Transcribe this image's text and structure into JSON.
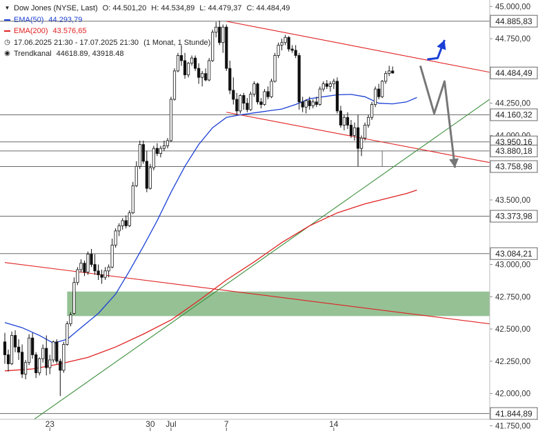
{
  "legend": {
    "title": "Dow Jones (NYSE, Last)",
    "ohlc": {
      "o": "O: 44.501,20",
      "h": "H: 44.534,89",
      "l": "L: 44.479,37",
      "c": "C: 44.484,49"
    },
    "ema50": {
      "label": "EMA(50)",
      "value": "44.293,79",
      "color": "#1a3fd6"
    },
    "ema200": {
      "label": "EMA(200)",
      "value": "43.576,65",
      "color": "#e02020"
    },
    "period": {
      "range": "17.06.2025 21:30 - 17.07.2025 21:30",
      "interval": "(1 Monat, 1 Stunde)"
    },
    "channel": {
      "label": "Trendkanal",
      "values": "44618.89, 43918.48"
    }
  },
  "chart_data": {
    "type": "candlestick",
    "ylim": [
      41800,
      45050
    ],
    "y_ticks": [
      {
        "v": 45000,
        "label": "45.000,00"
      },
      {
        "v": 44750,
        "label": "44.750,00"
      },
      {
        "v": 44250,
        "label": "44.250,00"
      },
      {
        "v": 44000,
        "label": "44.000,00"
      },
      {
        "v": 43500,
        "label": "43.500,00"
      },
      {
        "v": 43000,
        "label": "43.000,00"
      },
      {
        "v": 42750,
        "label": "42.750,00"
      },
      {
        "v": 42500,
        "label": "42.500,00"
      },
      {
        "v": 42250,
        "label": "42.250,00"
      },
      {
        "v": 42000,
        "label": "42.000,00"
      },
      {
        "v": 41750,
        "label": "41.750,00"
      }
    ],
    "x_ticks": [
      {
        "i": 13,
        "label": "23"
      },
      {
        "i": 42,
        "label": "30"
      },
      {
        "i": 48,
        "label": "Jul"
      },
      {
        "i": 64,
        "label": "7"
      },
      {
        "i": 95,
        "label": "14"
      }
    ],
    "levels": [
      {
        "v": 44885.83,
        "label": "44.885,83"
      },
      {
        "v": 44160.32,
        "label": "44.160,32"
      },
      {
        "v": 43950.16,
        "label": "43.950,16"
      },
      {
        "v": 43880.18,
        "label": "43.880,18"
      },
      {
        "v": 43758.98,
        "label": "43.758,98"
      },
      {
        "v": 43373.98,
        "label": "43.373,98"
      },
      {
        "v": 43084.21,
        "label": "43.084,21"
      },
      {
        "v": 41844.89,
        "label": "41.844,89"
      }
    ],
    "last_price": {
      "v": 44484.49,
      "label": "44.484,49"
    },
    "zone": {
      "from_i": 18,
      "low": 42600,
      "high": 42790,
      "color": "#8fbe8f"
    },
    "trendlines": [
      {
        "name": "channel-upper",
        "i1": 64,
        "v1": 44885,
        "i2": 140,
        "v2": 44490,
        "color": "#e02020"
      },
      {
        "name": "channel-lower",
        "i1": 64,
        "v1": 44180,
        "i2": 140,
        "v2": 43790,
        "color": "#e02020"
      },
      {
        "name": "long-down",
        "i1": 0,
        "v1": 43015,
        "i2": 140,
        "v2": 42540,
        "color": "#e02020"
      },
      {
        "name": "uptrend",
        "i1": 0,
        "v1": 41640,
        "i2": 140,
        "v2": 44280,
        "color": "#3b8f3b"
      }
    ],
    "arrows": [
      {
        "name": "bull-scenario",
        "color": "#1a3fd6",
        "points": [
          [
            122,
            44590
          ],
          [
            125,
            44600
          ],
          [
            127,
            44740
          ]
        ]
      },
      {
        "name": "bear-scenario",
        "color": "#777777",
        "points": [
          [
            120,
            44540
          ],
          [
            124,
            44170
          ],
          [
            127,
            44420
          ],
          [
            130,
            43750
          ]
        ]
      }
    ],
    "ema50": [
      [
        0,
        42550
      ],
      [
        5,
        42510
      ],
      [
        10,
        42450
      ],
      [
        14,
        42390
      ],
      [
        18,
        42420
      ],
      [
        22,
        42510
      ],
      [
        27,
        42620
      ],
      [
        32,
        42770
      ],
      [
        36,
        42950
      ],
      [
        40,
        43140
      ],
      [
        44,
        43340
      ],
      [
        48,
        43560
      ],
      [
        52,
        43760
      ],
      [
        56,
        43930
      ],
      [
        60,
        44060
      ],
      [
        64,
        44140
      ],
      [
        68,
        44160
      ],
      [
        72,
        44175
      ],
      [
        76,
        44190
      ],
      [
        80,
        44205
      ],
      [
        84,
        44240
      ],
      [
        88,
        44285
      ],
      [
        92,
        44300
      ],
      [
        96,
        44315
      ],
      [
        100,
        44318
      ],
      [
        104,
        44300
      ],
      [
        108,
        44250
      ],
      [
        112,
        44245
      ],
      [
        116,
        44260
      ],
      [
        119,
        44294
      ]
    ],
    "ema200": [
      [
        0,
        42175
      ],
      [
        8,
        42190
      ],
      [
        16,
        42230
      ],
      [
        24,
        42280
      ],
      [
        32,
        42360
      ],
      [
        40,
        42460
      ],
      [
        48,
        42570
      ],
      [
        56,
        42720
      ],
      [
        64,
        42880
      ],
      [
        72,
        43020
      ],
      [
        80,
        43170
      ],
      [
        88,
        43300
      ],
      [
        96,
        43400
      ],
      [
        104,
        43470
      ],
      [
        110,
        43510
      ],
      [
        116,
        43550
      ],
      [
        119,
        43577
      ]
    ],
    "candles": [
      [
        42400,
        42470,
        42230,
        42300
      ],
      [
        42300,
        42340,
        42170,
        42230
      ],
      [
        42230,
        42480,
        42220,
        42450
      ],
      [
        42450,
        42490,
        42320,
        42360
      ],
      [
        42360,
        42420,
        42260,
        42320
      ],
      [
        42320,
        42380,
        42120,
        42150
      ],
      [
        42150,
        42260,
        42110,
        42240
      ],
      [
        42240,
        42460,
        42220,
        42430
      ],
      [
        42430,
        42470,
        42270,
        42300
      ],
      [
        42300,
        42320,
        42120,
        42160
      ],
      [
        42160,
        42280,
        42140,
        42270
      ],
      [
        42270,
        42380,
        42240,
        42350
      ],
      [
        42350,
        42450,
        42140,
        42200
      ],
      [
        42200,
        42300,
        42150,
        42260
      ],
      [
        42260,
        42410,
        42240,
        42400
      ],
      [
        42400,
        42420,
        42230,
        42250
      ],
      [
        42250,
        42270,
        41980,
        42180
      ],
      [
        42180,
        42400,
        42160,
        42380
      ],
      [
        42380,
        42560,
        42370,
        42540
      ],
      [
        42540,
        42630,
        42520,
        42610
      ],
      [
        42620,
        42900,
        42610,
        42860
      ],
      [
        42860,
        42980,
        42840,
        42960
      ],
      [
        42960,
        43040,
        42940,
        43010
      ],
      [
        43010,
        43030,
        42910,
        42940
      ],
      [
        42940,
        43100,
        42920,
        43080
      ],
      [
        43080,
        43120,
        42980,
        43000
      ],
      [
        43000,
        43080,
        42920,
        42950
      ],
      [
        42950,
        43000,
        42880,
        42920
      ],
      [
        42920,
        42960,
        42850,
        42900
      ],
      [
        42900,
        42980,
        42880,
        42950
      ],
      [
        42950,
        43000,
        42900,
        42980
      ],
      [
        42980,
        43200,
        42970,
        43150
      ],
      [
        43150,
        43280,
        43130,
        43260
      ],
      [
        43260,
        43320,
        43220,
        43300
      ],
      [
        43300,
        43360,
        43270,
        43340
      ],
      [
        43340,
        43380,
        43280,
        43300
      ],
      [
        43300,
        43420,
        43290,
        43400
      ],
      [
        43400,
        43640,
        43390,
        43610
      ],
      [
        43610,
        43800,
        43600,
        43760
      ],
      [
        43760,
        43960,
        43740,
        43930
      ],
      [
        43930,
        43960,
        43780,
        43800
      ],
      [
        43800,
        43880,
        43560,
        43590
      ],
      [
        43590,
        43780,
        43580,
        43750
      ],
      [
        43750,
        43920,
        43730,
        43900
      ],
      [
        43900,
        43940,
        43840,
        43860
      ],
      [
        43860,
        43920,
        43830,
        43900
      ],
      [
        43900,
        43960,
        43880,
        43920
      ],
      [
        43920,
        43980,
        43900,
        43960
      ],
      [
        43960,
        44300,
        43950,
        44280
      ],
      [
        44280,
        44520,
        44270,
        44500
      ],
      [
        44500,
        44640,
        44490,
        44620
      ],
      [
        44620,
        44700,
        44540,
        44580
      ],
      [
        44580,
        44640,
        44440,
        44470
      ],
      [
        44470,
        44570,
        44450,
        44560
      ],
      [
        44560,
        44620,
        44540,
        44600
      ],
      [
        44600,
        44620,
        44500,
        44520
      ],
      [
        44520,
        44560,
        44400,
        44450
      ],
      [
        44450,
        44500,
        44380,
        44480
      ],
      [
        44480,
        44520,
        44420,
        44430
      ],
      [
        44430,
        44600,
        44420,
        44580
      ],
      [
        44580,
        44820,
        44570,
        44800
      ],
      [
        44800,
        44880,
        44760,
        44840
      ],
      [
        44840,
        44890,
        44700,
        44720
      ],
      [
        44720,
        44860,
        44640,
        44840
      ],
      [
        44840,
        44860,
        44500,
        44520
      ],
      [
        44520,
        44580,
        44320,
        44350
      ],
      [
        44350,
        44450,
        44240,
        44280
      ],
      [
        44280,
        44330,
        44160,
        44190
      ],
      [
        44190,
        44320,
        44170,
        44310
      ],
      [
        44310,
        44330,
        44200,
        44250
      ],
      [
        44250,
        44290,
        44180,
        44200
      ],
      [
        44200,
        44340,
        44190,
        44320
      ],
      [
        44320,
        44420,
        44300,
        44400
      ],
      [
        44400,
        44410,
        44240,
        44260
      ],
      [
        44260,
        44290,
        44210,
        44240
      ],
      [
        44240,
        44360,
        44230,
        44340
      ],
      [
        44340,
        44380,
        44280,
        44300
      ],
      [
        44300,
        44440,
        44290,
        44420
      ],
      [
        44420,
        44640,
        44410,
        44620
      ],
      [
        44620,
        44720,
        44600,
        44700
      ],
      [
        44700,
        44750,
        44660,
        44720
      ],
      [
        44720,
        44780,
        44700,
        44760
      ],
      [
        44760,
        44770,
        44650,
        44670
      ],
      [
        44670,
        44700,
        44640,
        44660
      ],
      [
        44660,
        44700,
        44600,
        44620
      ],
      [
        44620,
        44640,
        44200,
        44260
      ],
      [
        44260,
        44300,
        44180,
        44220
      ],
      [
        44220,
        44280,
        44170,
        44270
      ],
      [
        44270,
        44300,
        44200,
        44230
      ],
      [
        44230,
        44280,
        44210,
        44260
      ],
      [
        44260,
        44300,
        44220,
        44240
      ],
      [
        44240,
        44380,
        44230,
        44360
      ],
      [
        44360,
        44420,
        44340,
        44400
      ],
      [
        44400,
        44430,
        44360,
        44380
      ],
      [
        44380,
        44420,
        44340,
        44400
      ],
      [
        44400,
        44440,
        44360,
        44420
      ],
      [
        44420,
        44450,
        44170,
        44190
      ],
      [
        44190,
        44230,
        44060,
        44080
      ],
      [
        44080,
        44160,
        44040,
        44140
      ],
      [
        44140,
        44180,
        44050,
        44080
      ],
      [
        44080,
        44120,
        43980,
        44000
      ],
      [
        44000,
        44100,
        43960,
        44060
      ],
      [
        44060,
        44160,
        43760,
        43900
      ],
      [
        43900,
        44000,
        43840,
        43980
      ],
      [
        43980,
        44100,
        43960,
        44080
      ],
      [
        44080,
        44160,
        44060,
        44140
      ],
      [
        44140,
        44260,
        44120,
        44240
      ],
      [
        44240,
        44380,
        44220,
        44360
      ],
      [
        44360,
        44400,
        44280,
        44300
      ],
      [
        44300,
        44430,
        44290,
        44420
      ],
      [
        44420,
        44500,
        44400,
        44480
      ],
      [
        44480,
        44540,
        44460,
        44500
      ],
      [
        44500,
        44535,
        44479,
        44484
      ]
    ]
  }
}
